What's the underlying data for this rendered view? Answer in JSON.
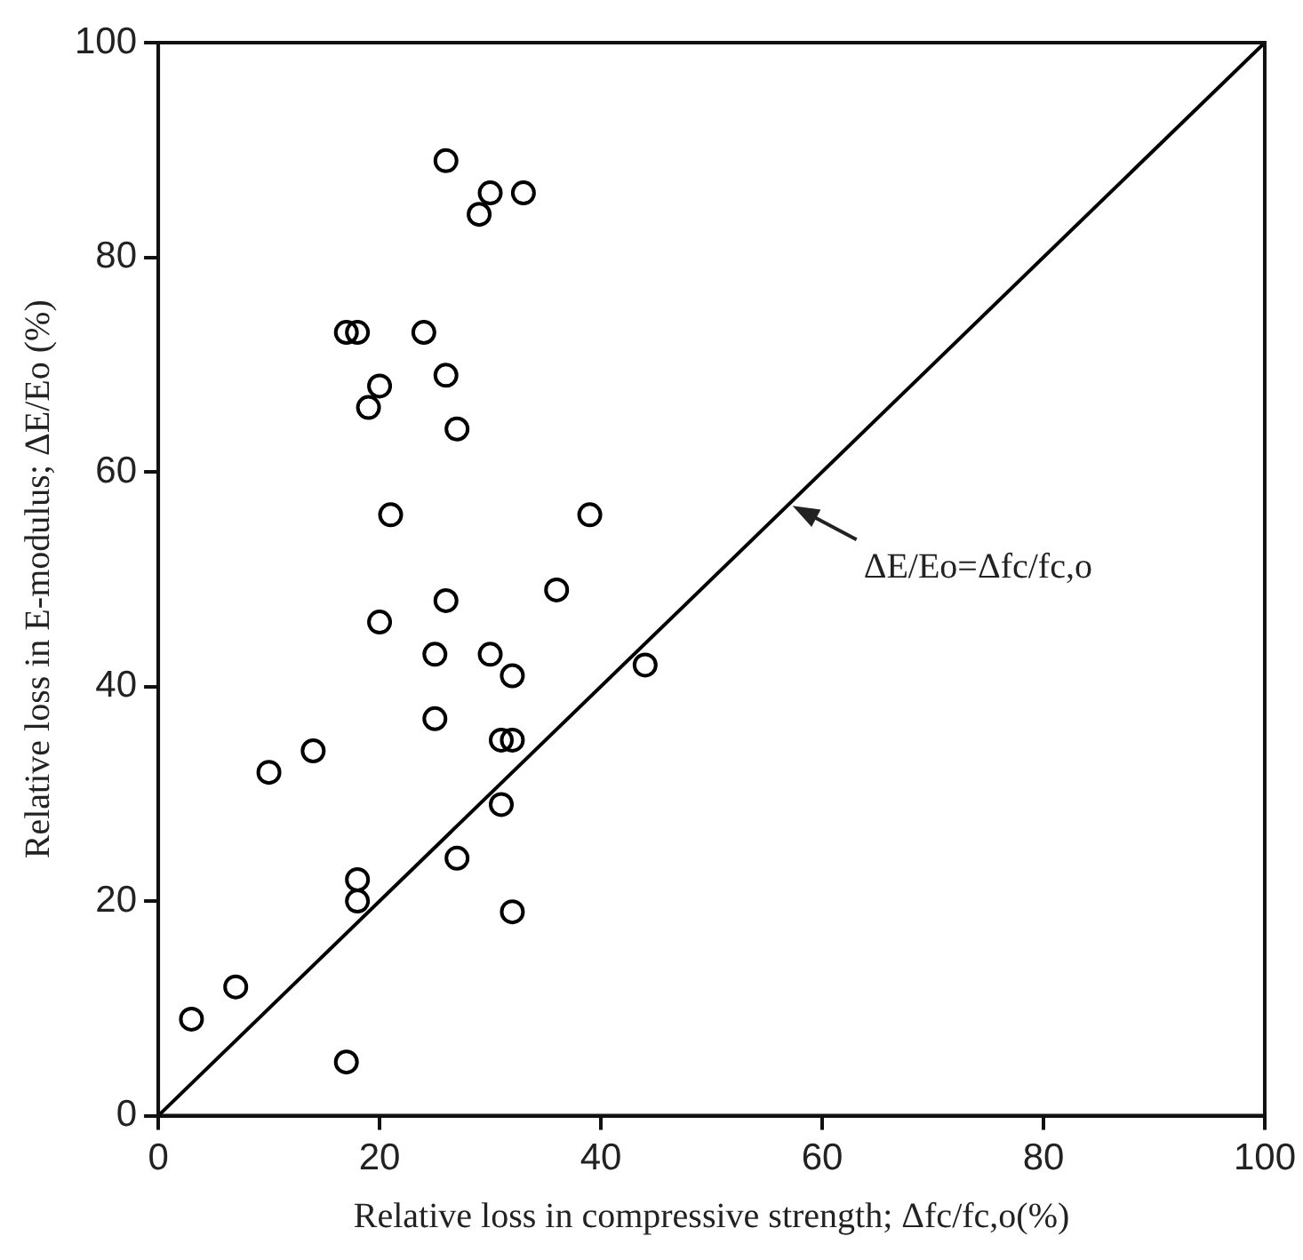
{
  "chart_data": {
    "type": "scatter",
    "xlabel": "Relative loss in compressive strength; Δfc/fc,o(%)",
    "ylabel": "Relative loss in E-modulus; ΔE/Eo (%)",
    "xlim": [
      0,
      100
    ],
    "ylim": [
      0,
      100
    ],
    "xticks": [
      0,
      20,
      40,
      60,
      80,
      100
    ],
    "yticks": [
      0,
      20,
      40,
      60,
      80,
      100
    ],
    "grid": false,
    "legend": false,
    "marker": "circle",
    "annotations": [
      {
        "text": "ΔE/Eo=Δfc/fc,o",
        "x": 57,
        "y": 57
      }
    ],
    "series": [
      {
        "color": "#000000",
        "x": [
          3,
          7,
          10,
          14,
          17,
          17,
          18,
          18,
          18,
          19,
          20,
          20,
          21,
          24,
          25,
          25,
          26,
          26,
          26,
          27,
          27,
          29,
          30,
          30,
          31,
          31,
          32,
          32,
          32,
          33,
          36,
          39,
          44
        ],
        "values": [
          9,
          12,
          32,
          34,
          5,
          73,
          73,
          22,
          20,
          66,
          68,
          46,
          56,
          73,
          43,
          37,
          69,
          48,
          89,
          64,
          24,
          84,
          86,
          43,
          35,
          29,
          35,
          41,
          19,
          86,
          49,
          56,
          42
        ]
      },
      {
        "type": "line",
        "color": "#000000",
        "marker": "none",
        "line_style": "solid",
        "x": [
          0,
          100
        ],
        "values": [
          0,
          100
        ]
      }
    ]
  }
}
